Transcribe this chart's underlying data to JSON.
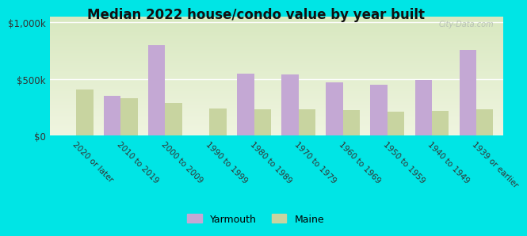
{
  "title": "Median 2022 house/condo value by year built",
  "categories": [
    "2020 or later",
    "2010 to 2019",
    "2000 to 2009",
    "1990 to 1999",
    "1980 to 1989",
    "1970 to 1979",
    "1960 to 1969",
    "1950 to 1959",
    "1940 to 1949",
    "1939 or earlier"
  ],
  "yarmouth_values": [
    0,
    350000,
    800000,
    0,
    550000,
    540000,
    470000,
    450000,
    490000,
    760000
  ],
  "maine_values": [
    410000,
    330000,
    290000,
    240000,
    235000,
    230000,
    225000,
    210000,
    220000,
    230000
  ],
  "yarmouth_color": "#c4a8d4",
  "maine_color": "#c8d4a0",
  "background_color": "#00e5e5",
  "plot_bg_top": "#d8e8c0",
  "plot_bg_bottom": "#f0f5e0",
  "ylabel_ticks": [
    "$0",
    "$500k",
    "$1,000k"
  ],
  "ytick_vals": [
    0,
    500000,
    1000000
  ],
  "ylim": [
    0,
    1050000
  ],
  "legend_labels": [
    "Yarmouth",
    "Maine"
  ],
  "watermark": "City-Data.com",
  "bar_width": 0.38
}
